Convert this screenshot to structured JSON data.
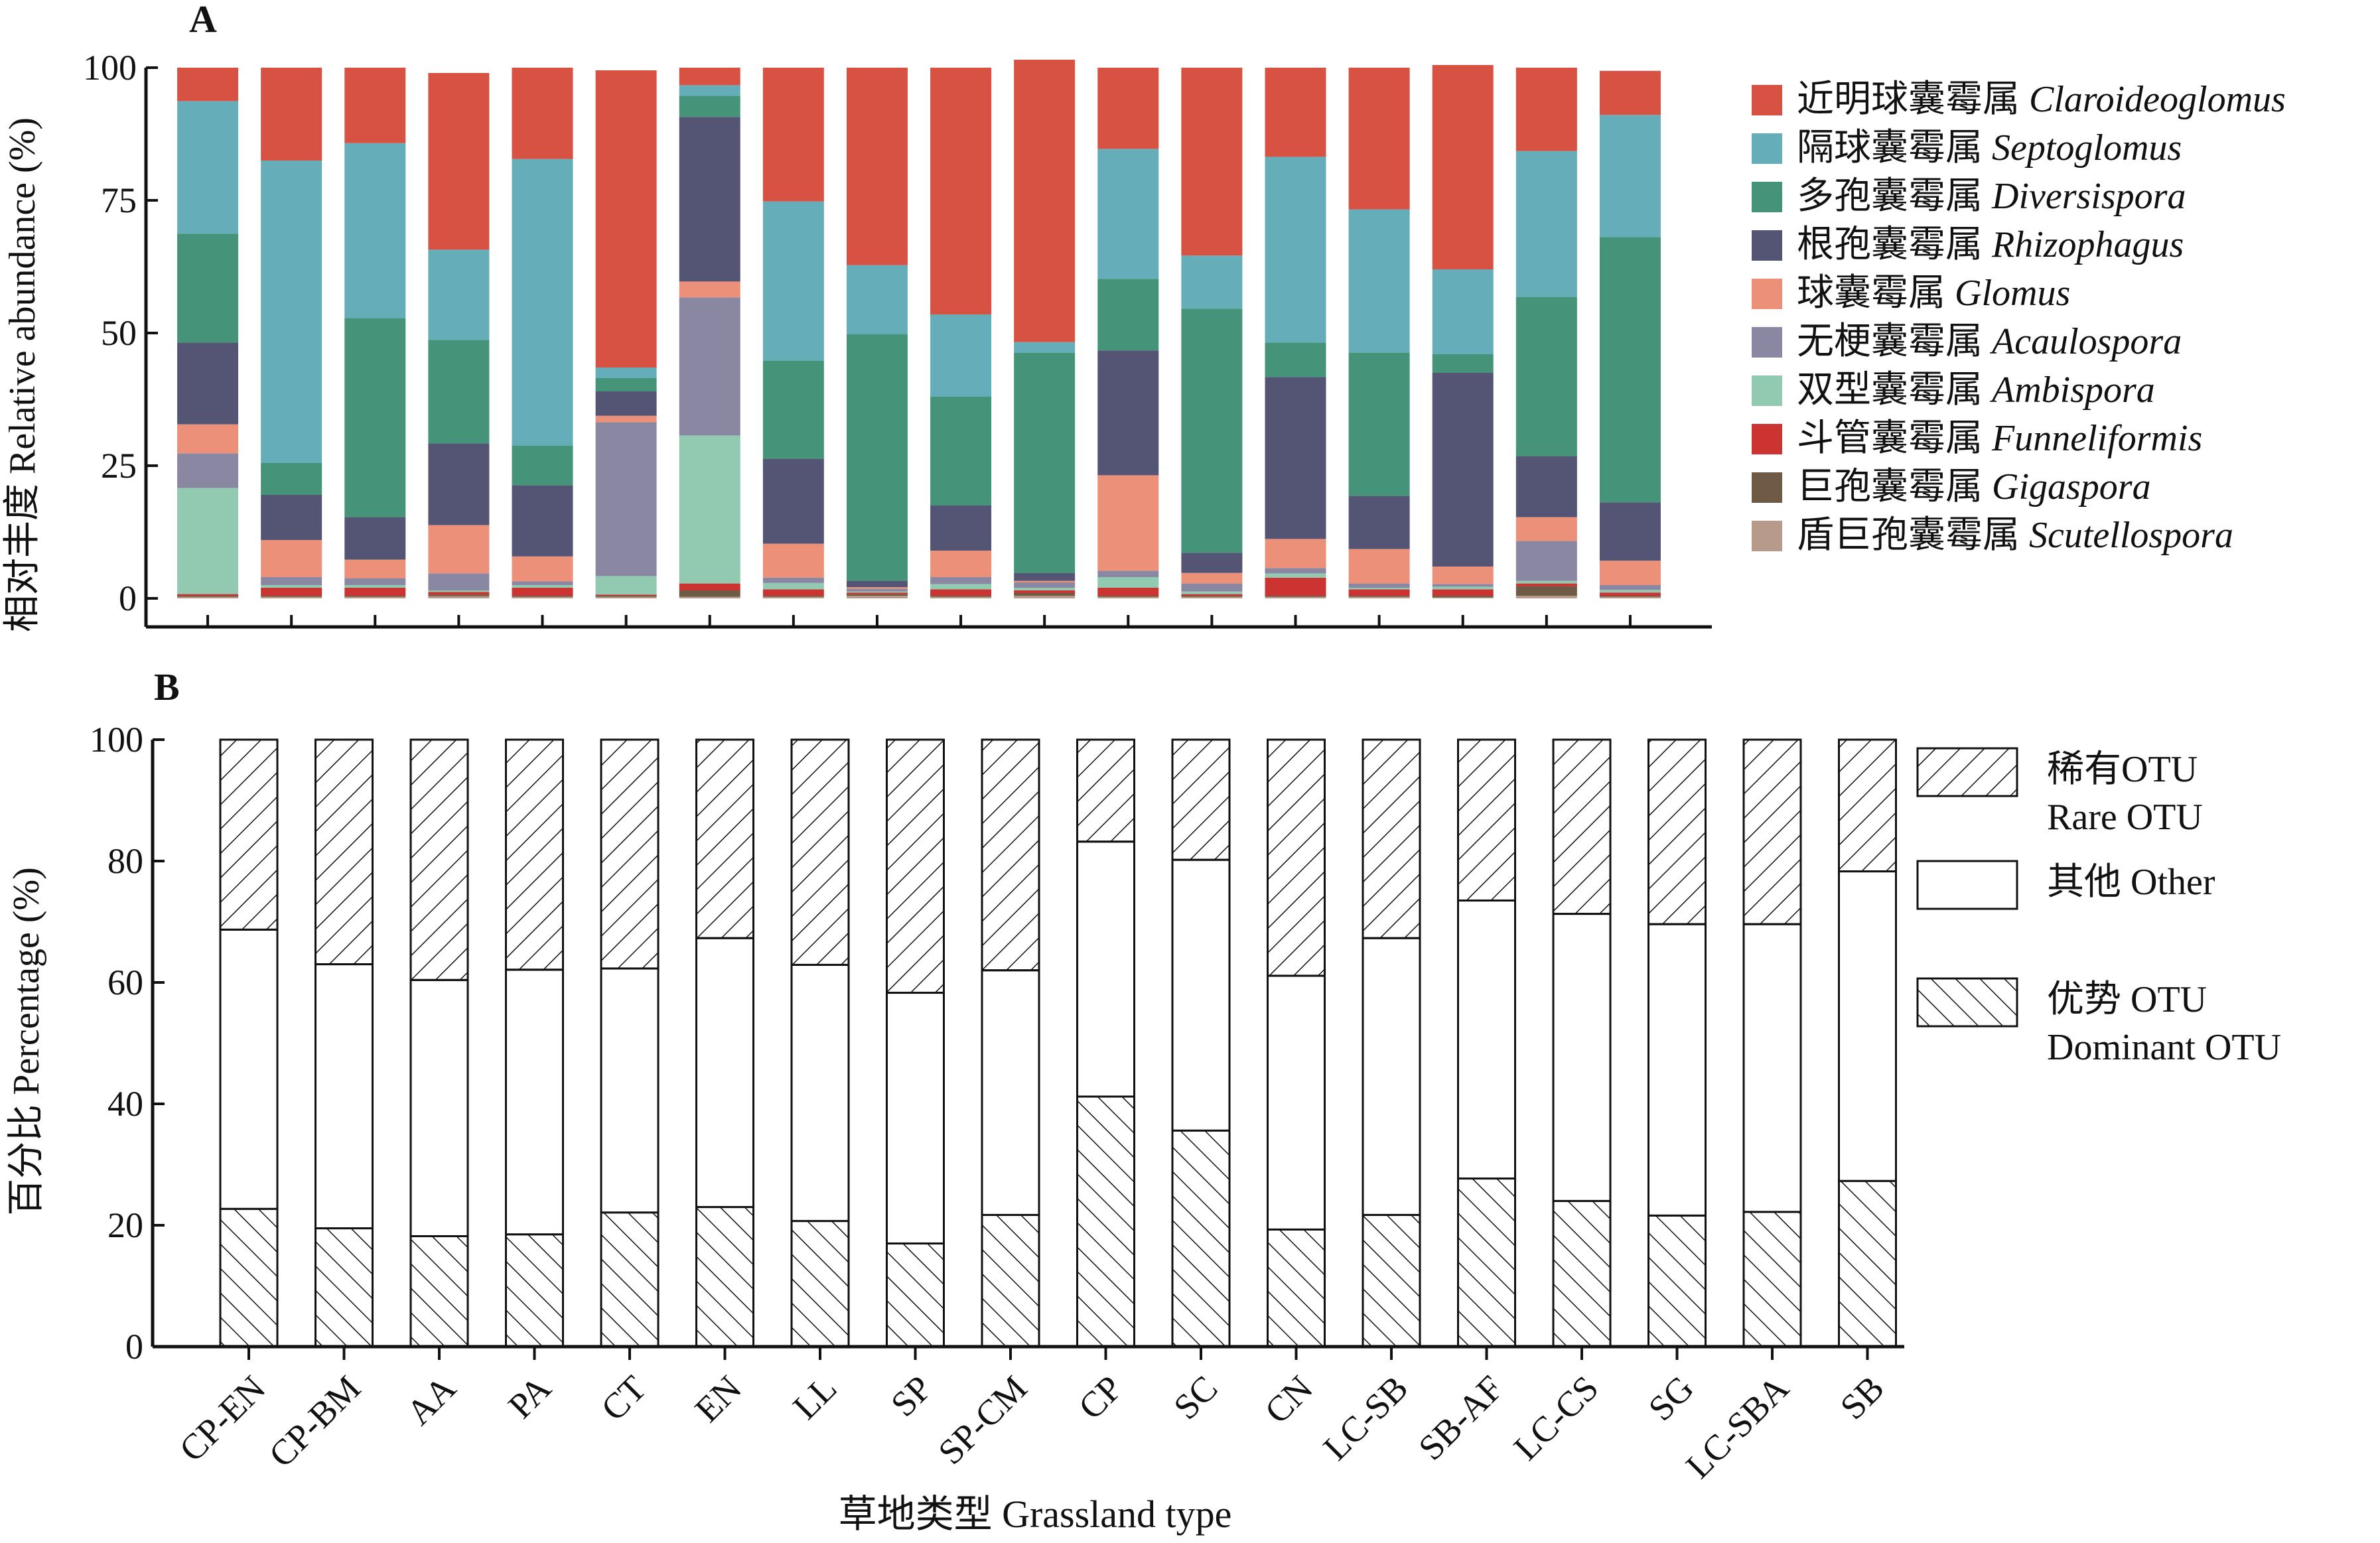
{
  "panels": {
    "a_label": "A",
    "b_label": "B"
  },
  "x_axis_label": "草地类型 Grassland type",
  "colors": {
    "Claroideoglomus": "#d85244",
    "Septoglomus": "#65aeb9",
    "Diversispora": "#459379",
    "Rhizophagus": "#545575",
    "Glomus": "#ec907a",
    "Acaulospora": "#8a87a2",
    "Ambispora": "#92c9b1",
    "Funneliformis": "#cc3431",
    "Gigaspora": "#6e5a45",
    "Scutellospora": "#b79a8a"
  },
  "chart_data": [
    {
      "type": "bar",
      "stacked": true,
      "panel": "A",
      "ylabel": "相对丰度 Relative abundance (%)",
      "ylim": [
        0,
        100
      ],
      "yticks": [
        0,
        25,
        50,
        75,
        100
      ],
      "categories": [
        "CP-EN",
        "CP-BM",
        "AA",
        "PA",
        "CT",
        "EN",
        "LL",
        "SP",
        "SP-CM",
        "CP",
        "SC",
        "CN",
        "LC-SB",
        "SB-AF",
        "LC-CS",
        "SG",
        "LC-SBA",
        "SB"
      ],
      "legend_position": "right",
      "series": [
        {
          "key": "Scutellospora",
          "name": "盾巨孢囊霉属",
          "latin": "Scutellospora",
          "values": [
            0.3,
            0.3,
            0.3,
            0.4,
            0.3,
            0.3,
            0.3,
            0.3,
            0.5,
            0.3,
            0.5,
            0.3,
            0.3,
            0.3,
            0.3,
            0.2,
            0.5,
            0.3
          ]
        },
        {
          "key": "Gigaspora",
          "name": "巨孢囊霉属",
          "latin": "Gigaspora",
          "values": [
            0.2,
            0.2,
            0.2,
            0.3,
            0.2,
            0.2,
            1.2,
            0.2,
            0.3,
            0.2,
            0.5,
            0.2,
            0.2,
            0.2,
            0.2,
            0.3,
            1.8,
            0.2
          ]
        },
        {
          "key": "Funneliformis",
          "name": "斗管囊霉属",
          "latin": "Funneliformis",
          "values": [
            0.3,
            1.5,
            1.5,
            0.5,
            1.5,
            0.2,
            1.3,
            1.2,
            0.3,
            1.2,
            0.5,
            1.5,
            0.3,
            3.4,
            1.2,
            1.2,
            0.5,
            0.6
          ]
        },
        {
          "key": "Ambispora",
          "name": "双型囊霉属",
          "latin": "Ambispora",
          "values": [
            20,
            0.5,
            0.5,
            0.3,
            0.5,
            3.5,
            27.9,
            1.2,
            0.2,
            1,
            0.5,
            2,
            0.5,
            0.8,
            0.3,
            0.5,
            0.5,
            0.5
          ]
        },
        {
          "key": "Acaulospora",
          "name": "无梗囊霉属",
          "latin": "Acaulospora",
          "values": [
            6.5,
            1.5,
            1.3,
            3.2,
            0.7,
            29,
            26,
            1,
            0.5,
            1.3,
            1,
            1.2,
            1.5,
            1,
            0.8,
            0.5,
            7.5,
            0.9
          ]
        },
        {
          "key": "Glomus",
          "name": "球囊霉属",
          "latin": "Glomus",
          "values": [
            5.5,
            7,
            3.5,
            9.1,
            4.7,
            1.2,
            3,
            6.4,
            0.3,
            5,
            0.3,
            18,
            2,
            5.5,
            6.5,
            3.3,
            4.5,
            4.6
          ]
        },
        {
          "key": "Rhizophagus",
          "name": "根孢囊霉属",
          "latin": "Rhizophagus",
          "values": [
            15.4,
            8.5,
            8,
            15.4,
            13.4,
            4.6,
            31,
            16,
            1.2,
            8.5,
            1.5,
            23.5,
            3.8,
            30.5,
            10,
            36.5,
            11.5,
            11
          ]
        },
        {
          "key": "Diversispora",
          "name": "多孢囊霉属",
          "latin": "Diversispora",
          "values": [
            20.5,
            6,
            37.5,
            19.5,
            7.5,
            2.5,
            4,
            18.5,
            46.5,
            20.5,
            41.5,
            13.5,
            46,
            6.5,
            27,
            3.5,
            30,
            50
          ]
        },
        {
          "key": "Septoglomus",
          "name": "隔球囊霉属",
          "latin": "Septoglomus",
          "values": [
            25,
            57,
            33,
            17,
            54,
            2,
            2,
            30,
            13,
            15.5,
            2,
            24.5,
            10,
            35,
            27,
            16,
            27.5,
            23
          ]
        },
        {
          "key": "Claroideoglomus",
          "name": "近明球囊霉属",
          "latin": "Claroideoglomus",
          "values": [
            6.3,
            17.5,
            14.2,
            33.3,
            17.2,
            56,
            3.3,
            25.2,
            37.2,
            46.5,
            53.2,
            15.3,
            35.4,
            16.8,
            26.7,
            38.5,
            15.7,
            8.3
          ]
        }
      ]
    },
    {
      "type": "bar",
      "stacked": true,
      "panel": "B",
      "ylabel": "百分比 Percentage (%)",
      "ylim": [
        0,
        100
      ],
      "yticks": [
        0,
        20,
        40,
        60,
        80,
        100
      ],
      "categories": [
        "CP-EN",
        "CP-BM",
        "AA",
        "PA",
        "CT",
        "EN",
        "LL",
        "SP",
        "SP-CM",
        "CP",
        "SC",
        "CN",
        "LC-SB",
        "SB-AF",
        "LC-CS",
        "SG",
        "LC-SBA",
        "SB"
      ],
      "legend_position": "right",
      "series": [
        {
          "key": "dominant",
          "name": "优势 OTU",
          "name_en": "Dominant OTU",
          "values": [
            22.7,
            19.5,
            18.2,
            18.5,
            22.1,
            23,
            20.7,
            17,
            21.7,
            41.2,
            35.6,
            19.3,
            21.7,
            27.7,
            24,
            21.6,
            22.2,
            27.3
          ]
        },
        {
          "key": "other",
          "name": "其他 Other",
          "name_en": "",
          "values": [
            46,
            43.5,
            42.2,
            43.6,
            40.2,
            44.3,
            42.2,
            41.3,
            40.3,
            42,
            44.6,
            41.8,
            45.6,
            45.8,
            47.3,
            48,
            47.4,
            51
          ]
        },
        {
          "key": "rare",
          "name": "稀有OTU",
          "name_en": "Rare OTU",
          "values": [
            31.3,
            37,
            39.6,
            37.9,
            37.7,
            32.7,
            37.1,
            41.7,
            38,
            16.8,
            19.8,
            38.9,
            32.7,
            26.5,
            28.7,
            30.4,
            30.4,
            21.7
          ]
        }
      ]
    }
  ]
}
